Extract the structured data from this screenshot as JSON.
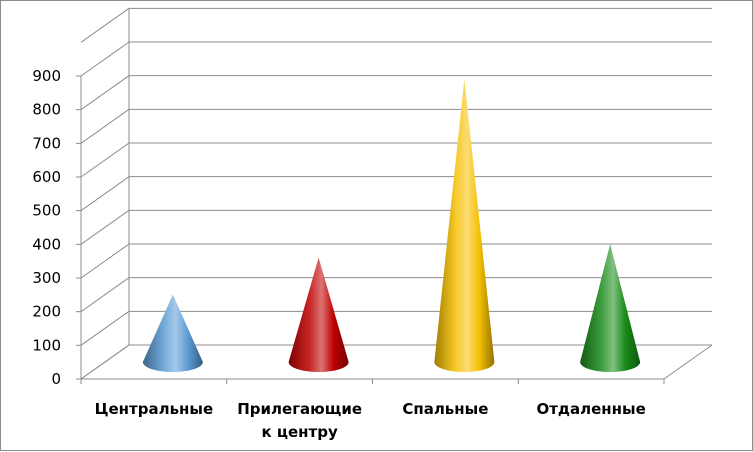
{
  "chart_data": {
    "type": "bar",
    "style": "3d-cone",
    "title": "",
    "xlabel": "",
    "ylabel": "",
    "ylim": [
      0,
      900
    ],
    "yticks": [
      0,
      100,
      200,
      300,
      400,
      500,
      600,
      700,
      800,
      900
    ],
    "ytick_labels": [
      "0",
      "100",
      "200",
      "300",
      "400",
      "500",
      "600",
      "700",
      "800",
      "900"
    ],
    "grid": true,
    "legend": "none",
    "categories": [
      [
        "Центральные"
      ],
      [
        "Прилегающие",
        "к центру"
      ],
      [
        "Спальные"
      ],
      [
        "Отдаленные"
      ]
    ],
    "values": [
      200,
      310,
      840,
      350
    ],
    "colors": [
      "#5b9bd5",
      "#c00000",
      "#f5c000",
      "#1a8c1a"
    ]
  }
}
